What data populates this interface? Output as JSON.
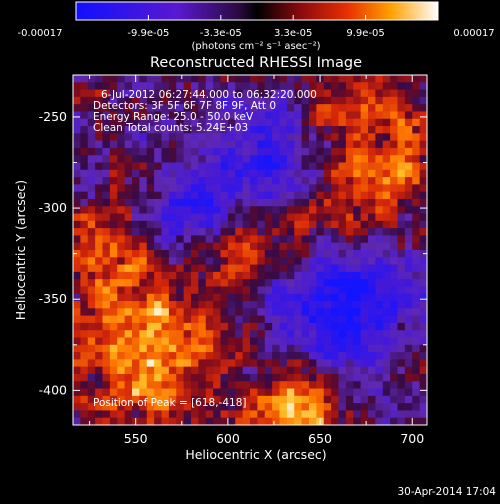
{
  "chart_data": {
    "type": "heatmap",
    "title": "Reconstructed RHESSI Image",
    "xlabel": "Heliocentric X (arcsec)",
    "ylabel": "Heliocentric Y (arcsec)",
    "xlim": [
      516,
      708
    ],
    "ylim": [
      -419,
      -227
    ],
    "xticks": [
      550,
      600,
      650,
      700
    ],
    "yticks": [
      -250,
      -300,
      -350,
      -400
    ],
    "colorbar": {
      "ticks": [
        "-0.00017",
        "-9.9e-05",
        "-3.3e-05",
        "3.3e-05",
        "9.9e-05",
        "0.00017"
      ],
      "unit_label": "(photons cm⁻² s⁻¹ asec⁻²)",
      "range": [
        -0.00017,
        0.00017
      ]
    },
    "annotations": [
      "6-Jul-2012 06:27:44.000 to 06:32:20.000",
      "Detectors: 3F 5F 6F 7F 8F 9F, Att 0",
      "Energy Range: 25.0 - 50.0 keV",
      "Clean    Total counts: 5.24E+03",
      "Position of Peak = [618,-418]"
    ],
    "peak": {
      "x": 618,
      "y": -418
    },
    "grid": false
  },
  "footer": {
    "timestamp": "30-Apr-2014 17:04"
  }
}
